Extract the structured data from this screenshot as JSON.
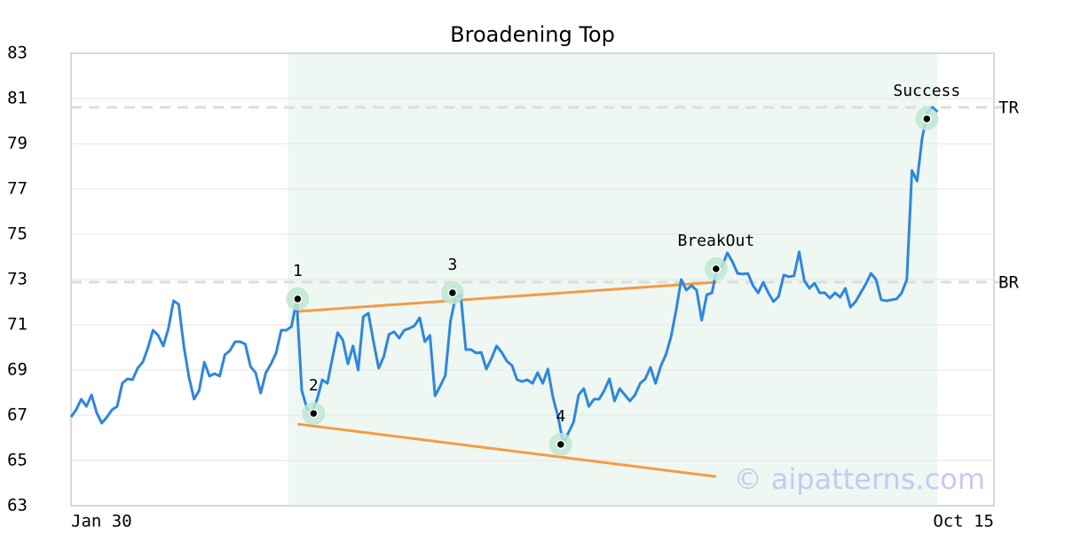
{
  "chart_data": {
    "type": "line",
    "title": "Broadening Top",
    "x": [
      0,
      1,
      2,
      3,
      4,
      5,
      6,
      7,
      8,
      9,
      10,
      11,
      12,
      13,
      14,
      15,
      16,
      17,
      18,
      19,
      20,
      21,
      22,
      23,
      24,
      25,
      26,
      27,
      28,
      29,
      30,
      31,
      32,
      33,
      34,
      35,
      36,
      37,
      38,
      39,
      40,
      41,
      42,
      43,
      44,
      45,
      46,
      47,
      48,
      49,
      50,
      51,
      52,
      53,
      54,
      55,
      56,
      57,
      58,
      59,
      60,
      61,
      62,
      63,
      64,
      65,
      66,
      67,
      68,
      69,
      70,
      71,
      72,
      73,
      74,
      75,
      76,
      77,
      78,
      79,
      80,
      81,
      82,
      83,
      84,
      85,
      86,
      87,
      88,
      89,
      90,
      91,
      92,
      93,
      94,
      95,
      96,
      97,
      98,
      99,
      100,
      101,
      102,
      103,
      104,
      105,
      106,
      107,
      108,
      109,
      110,
      111,
      112,
      113,
      114,
      115,
      116,
      117,
      118,
      119,
      120,
      121,
      122,
      123,
      124,
      125,
      126,
      127,
      128,
      129,
      130,
      131,
      132,
      133,
      134,
      135,
      136,
      137,
      138,
      139,
      140,
      141,
      142,
      143,
      144,
      145,
      146,
      147,
      148,
      149,
      150,
      151,
      152,
      153,
      154,
      155,
      156,
      157,
      158,
      159,
      160,
      161,
      162,
      163,
      164,
      165,
      166,
      167,
      168,
      169
    ],
    "series": [
      {
        "color": "#2e86de",
        "values": [
          66.92,
          67.24,
          67.71,
          67.39,
          67.9,
          67.12,
          66.65,
          66.92,
          67.24,
          67.39,
          68.41,
          68.61,
          68.57,
          69.08,
          69.35,
          69.98,
          70.76,
          70.53,
          70.06,
          70.84,
          72.06,
          71.9,
          70.06,
          68.69,
          67.71,
          68.1,
          69.35,
          68.73,
          68.84,
          68.73,
          69.67,
          69.86,
          70.25,
          70.25,
          70.14,
          69.16,
          68.88,
          67.98,
          68.88,
          69.27,
          69.75,
          70.76,
          70.76,
          70.92,
          72.1,
          68.1,
          67.31,
          67.12,
          67.71,
          68.57,
          68.41,
          69.55,
          70.65,
          70.33,
          69.27,
          70.06,
          69.0,
          71.35,
          71.51,
          70.25,
          69.08,
          69.59,
          70.57,
          70.69,
          70.41,
          70.76,
          70.84,
          70.96,
          71.31,
          70.25,
          70.53,
          67.86,
          68.29,
          68.76,
          71.16,
          72.22,
          72.33,
          69.9,
          69.9,
          69.75,
          69.78,
          69.04,
          69.51,
          70.06,
          69.78,
          69.39,
          69.2,
          68.57,
          68.49,
          68.57,
          68.41,
          68.88,
          68.41,
          69.04,
          67.78,
          66.92,
          65.75,
          66.22,
          66.69,
          67.9,
          68.18,
          67.39,
          67.71,
          67.71,
          68.1,
          68.61,
          67.63,
          68.18,
          67.9,
          67.63,
          67.9,
          68.41,
          68.61,
          69.12,
          68.41,
          69.16,
          69.67,
          70.45,
          71.63,
          73.0,
          72.53,
          72.73,
          72.53,
          71.2,
          72.33,
          72.41,
          73.55,
          73.59,
          74.18,
          73.78,
          73.27,
          73.24,
          73.27,
          72.73,
          72.41,
          72.88,
          72.41,
          72.02,
          72.25,
          73.2,
          73.12,
          73.16,
          74.22,
          72.96,
          72.61,
          72.84,
          72.41,
          72.41,
          72.18,
          72.41,
          72.22,
          72.61,
          71.78,
          72.02,
          72.41,
          72.8,
          73.27,
          73.0,
          72.1,
          72.06,
          72.1,
          72.14,
          72.41,
          73.0,
          77.82,
          77.35,
          79.27,
          80.37,
          80.61,
          80.41
        ]
      }
    ],
    "xlim": [
      0,
      180
    ],
    "xticks": [
      {
        "value": 0,
        "label": "Jan 30"
      },
      {
        "value": 180,
        "label": "Oct 15"
      }
    ],
    "ylim": [
      63,
      83
    ],
    "yticks": [
      63,
      65,
      67,
      69,
      71,
      73,
      75,
      77,
      79,
      81,
      83
    ],
    "grid": true,
    "highlight": {
      "x": [
        42.3,
        169
      ],
      "color": "#eef7f2"
    },
    "levels": [
      {
        "label": "TR",
        "value": 80.61
      },
      {
        "label": "BR",
        "value": 72.88
      }
    ],
    "trend_lines": [
      {
        "color": "#f39c45",
        "x": [
          44.2,
          125.8
        ],
        "y": [
          71.59,
          72.88
        ]
      },
      {
        "color": "#f39c45",
        "x": [
          44.2,
          125.8
        ],
        "y": [
          66.61,
          64.29
        ]
      }
    ],
    "pivots": [
      {
        "label": "1",
        "x": 44.2,
        "y": 72.14
      },
      {
        "label": "2",
        "x": 47.3,
        "y": 67.08
      },
      {
        "label": "3",
        "x": 74.4,
        "y": 72.41
      },
      {
        "label": "4",
        "x": 95.5,
        "y": 65.71
      },
      {
        "label": "BreakOut",
        "x": 125.8,
        "y": 73.47
      },
      {
        "label": "Success",
        "x": 166.9,
        "y": 80.1
      }
    ],
    "watermark": "© aipatterns.com"
  }
}
